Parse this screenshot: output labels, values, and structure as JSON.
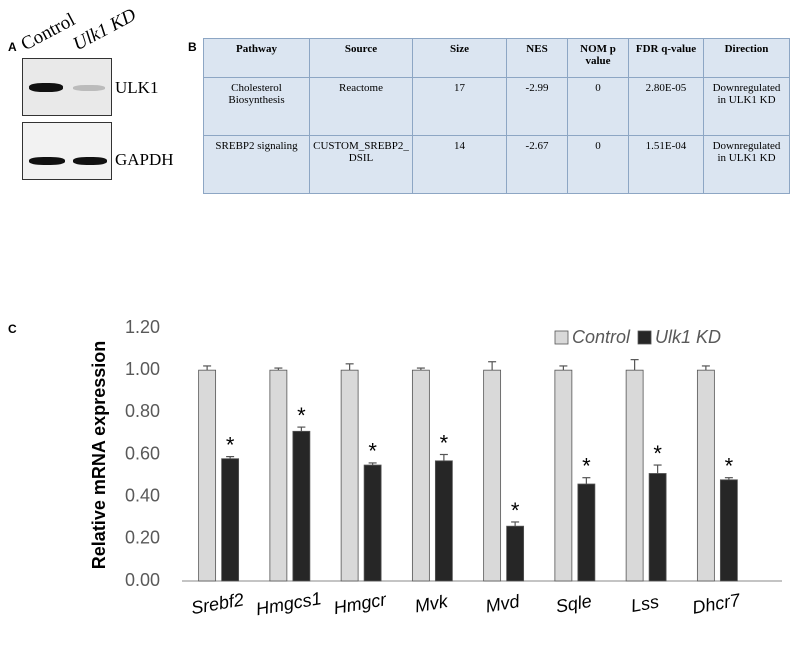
{
  "panels": {
    "a": "A",
    "b": "B",
    "c": "C"
  },
  "blot": {
    "lanes": [
      "Control",
      "Ulk1 KD"
    ],
    "proteins": [
      "ULK1",
      "GAPDH"
    ]
  },
  "table": {
    "columns": [
      "Pathway",
      "Source",
      "Size",
      "NES",
      "NOM p value",
      "FDR q-value",
      "Direction"
    ],
    "rows": [
      [
        "Cholesterol Biosynthesis",
        "Reactome",
        "17",
        "-2.99",
        "0",
        "2.80E-05",
        "Downregulated in ULK1 KD"
      ],
      [
        "SREBP2 signaling",
        "CUSTOM_SREBP2_DSIL",
        "14",
        "-2.67",
        "0",
        "1.51E-04",
        "Downregulated in ULK1 KD"
      ]
    ]
  },
  "chart_data": {
    "type": "bar",
    "y_label": "Relative mRNA expression",
    "categories": [
      "Srebf2",
      "Hmgcs1",
      "Hmgcr",
      "Mvk",
      "Mvd",
      "Sqle",
      "Lss",
      "Dhcr7"
    ],
    "series": [
      {
        "name": "Control",
        "color": "#d9d9d9",
        "values": [
          1.0,
          1.0,
          1.0,
          1.0,
          1.0,
          1.0,
          1.0,
          1.0
        ],
        "errors": [
          0.02,
          0.01,
          0.03,
          0.01,
          0.04,
          0.02,
          0.05,
          0.02
        ]
      },
      {
        "name": "Ulk1 KD",
        "color": "#262626",
        "values": [
          0.58,
          0.71,
          0.55,
          0.57,
          0.26,
          0.46,
          0.51,
          0.48
        ],
        "errors": [
          0.01,
          0.02,
          0.01,
          0.03,
          0.02,
          0.03,
          0.04,
          0.01
        ],
        "markers": [
          "*",
          "*",
          "*",
          "*",
          "*",
          "*",
          "*",
          "*"
        ]
      }
    ],
    "ylim": [
      0,
      1.2
    ],
    "yticks": [
      {
        "value": 0,
        "label": "0.00"
      },
      {
        "value": 0.2,
        "label": "0.20"
      },
      {
        "value": 0.4,
        "label": "0.40"
      },
      {
        "value": 0.6,
        "label": "0.60"
      },
      {
        "value": 0.8,
        "label": "0.80"
      },
      {
        "value": 1.0,
        "label": "1.00"
      },
      {
        "value": 1.2,
        "label": "1.20"
      }
    ],
    "grid": false,
    "legend": "top-right"
  }
}
